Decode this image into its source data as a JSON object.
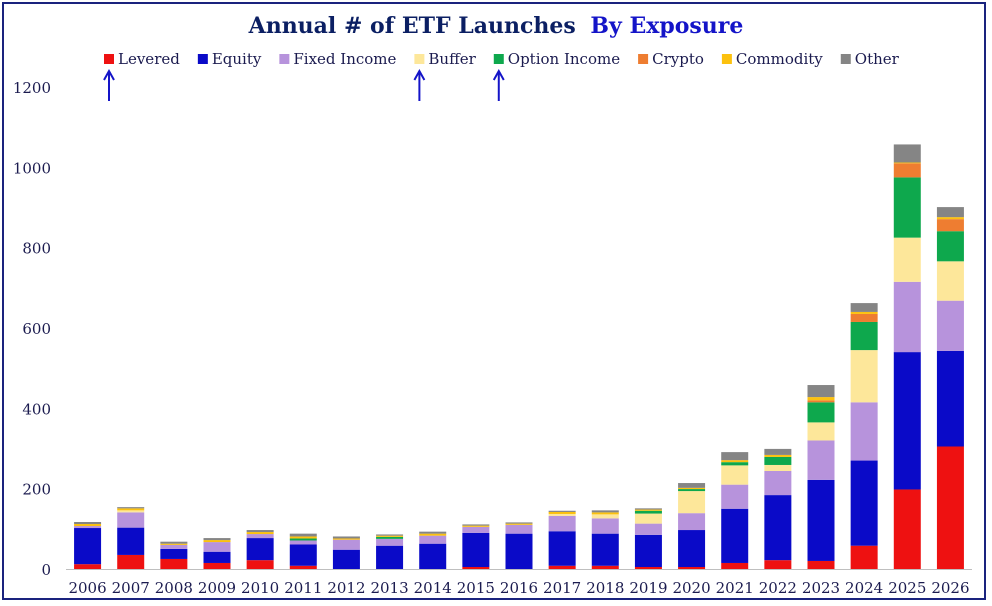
{
  "chart_data": {
    "type": "bar",
    "stacked": true,
    "title": "Annual # of ETF Launches",
    "title_emphasis": "By Exposure",
    "title_color": "#0b1f63",
    "title_emphasis_color": "#1414c8",
    "xlabel": "",
    "ylabel": "",
    "ylim": [
      0,
      1300
    ],
    "yticks": [
      0,
      200,
      400,
      600,
      800,
      1000,
      1200
    ],
    "grid": false,
    "legend_position": "top",
    "categories": [
      "2006",
      "2007",
      "2008",
      "2009",
      "2010",
      "2011",
      "2012",
      "2013",
      "2014",
      "2015",
      "2016",
      "2017",
      "2018",
      "2019",
      "2020",
      "2021",
      "2022",
      "2023",
      "2024",
      "2025",
      "2026"
    ],
    "series": [
      {
        "name": "Levered",
        "color": "#ee1111",
        "values": [
          12,
          35,
          25,
          15,
          22,
          8,
          0,
          0,
          0,
          5,
          0,
          8,
          8,
          5,
          5,
          15,
          22,
          20,
          58,
          198,
          305
        ]
      },
      {
        "name": "Equity",
        "color": "#0a0ac8",
        "values": [
          90,
          68,
          25,
          28,
          55,
          53,
          48,
          58,
          63,
          85,
          88,
          86,
          80,
          80,
          92,
          135,
          162,
          202,
          212,
          342,
          238
        ]
      },
      {
        "name": "Fixed Income",
        "color": "#b793dc",
        "values": [
          5,
          38,
          10,
          24,
          10,
          10,
          25,
          17,
          20,
          15,
          22,
          38,
          38,
          28,
          42,
          60,
          60,
          98,
          145,
          175,
          125
        ]
      },
      {
        "name": "Buffer",
        "color": "#fde79a",
        "values": [
          0,
          5,
          0,
          0,
          0,
          0,
          0,
          0,
          0,
          0,
          0,
          5,
          10,
          25,
          55,
          48,
          15,
          45,
          130,
          110,
          98
        ]
      },
      {
        "name": "Option Income",
        "color": "#0ea84d",
        "values": [
          0,
          0,
          0,
          0,
          0,
          5,
          0,
          5,
          0,
          0,
          0,
          0,
          0,
          7,
          5,
          8,
          20,
          50,
          70,
          150,
          75
        ]
      },
      {
        "name": "Crypto",
        "color": "#ee7d31",
        "values": [
          0,
          0,
          0,
          0,
          0,
          0,
          0,
          0,
          0,
          0,
          0,
          0,
          0,
          0,
          0,
          0,
          0,
          5,
          20,
          35,
          30
        ]
      },
      {
        "name": "Commodity",
        "color": "#fcc10e",
        "values": [
          5,
          5,
          3,
          5,
          5,
          5,
          3,
          3,
          5,
          3,
          3,
          5,
          5,
          3,
          3,
          5,
          5,
          8,
          5,
          2,
          5
        ]
      },
      {
        "name": "Other",
        "color": "#858585",
        "values": [
          5,
          3,
          5,
          5,
          5,
          7,
          5,
          3,
          5,
          3,
          3,
          3,
          5,
          3,
          12,
          20,
          15,
          30,
          22,
          45,
          25
        ]
      }
    ],
    "annotations": [
      {
        "type": "arrow",
        "color": "#1414c8",
        "target": "Levered"
      },
      {
        "type": "arrow",
        "color": "#1414c8",
        "target": "Buffer"
      },
      {
        "type": "arrow",
        "color": "#1414c8",
        "target": "Option Income"
      }
    ]
  }
}
